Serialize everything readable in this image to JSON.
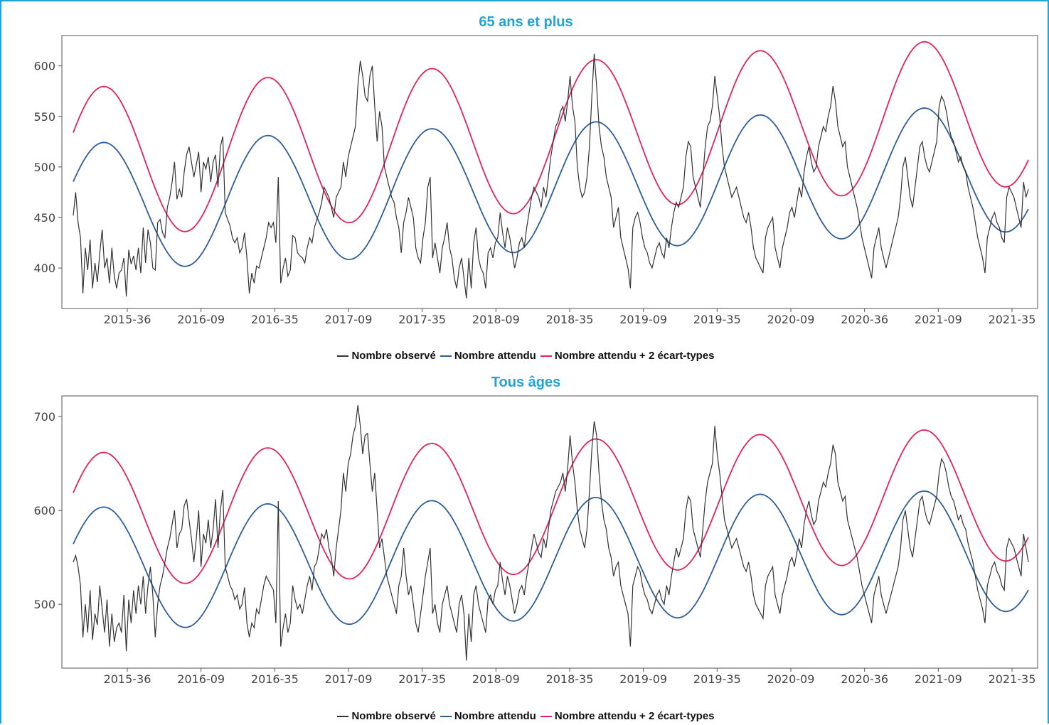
{
  "chart_data": [
    {
      "type": "line",
      "title": "65 ans et plus",
      "xlabel": "",
      "ylabel": "",
      "x_tick_labels": [
        "2015-36",
        "2016-09",
        "2016-35",
        "2017-09",
        "2017-35",
        "2018-09",
        "2018-35",
        "2019-09",
        "2019-35",
        "2020-09",
        "2020-36",
        "2021-09",
        "2021-35"
      ],
      "ylim": [
        360,
        630
      ],
      "y_ticks": [
        400,
        450,
        500,
        550,
        600
      ],
      "grid": false,
      "legend_position": "bottom",
      "series": [
        {
          "name": "Nombre observé",
          "color": "#333333",
          "values": [
            452,
            475,
            445,
            430,
            375,
            420,
            398,
            428,
            380,
            405,
            386,
            415,
            438,
            400,
            410,
            385,
            420,
            392,
            380,
            395,
            398,
            410,
            372,
            418,
            404,
            412,
            398,
            420,
            395,
            440,
            405,
            438,
            425,
            400,
            398,
            445,
            448,
            435,
            430,
            460,
            470,
            485,
            505,
            468,
            478,
            470,
            495,
            512,
            520,
            505,
            490,
            502,
            515,
            475,
            505,
            498,
            510,
            485,
            505,
            512,
            480,
            520,
            530,
            455,
            448,
            442,
            430,
            425,
            430,
            415,
            420,
            435,
            410,
            375,
            395,
            385,
            402,
            400,
            410,
            420,
            430,
            445,
            440,
            445,
            425,
            490,
            385,
            400,
            410,
            392,
            398,
            432,
            430,
            415,
            412,
            410,
            405,
            420,
            430,
            425,
            440,
            448,
            455,
            465,
            480,
            475,
            470,
            460,
            450,
            470,
            475,
            480,
            505,
            490,
            510,
            520,
            530,
            540,
            580,
            605,
            590,
            570,
            565,
            590,
            600,
            560,
            525,
            555,
            540,
            500,
            490,
            480,
            470,
            465,
            450,
            440,
            415,
            445,
            455,
            470,
            460,
            450,
            420,
            410,
            405,
            430,
            445,
            480,
            490,
            410,
            425,
            410,
            395,
            420,
            430,
            445,
            420,
            410,
            390,
            380,
            400,
            410,
            390,
            370,
            410,
            380,
            425,
            440,
            410,
            400,
            395,
            380,
            415,
            420,
            410,
            425,
            430,
            455,
            435,
            420,
            440,
            430,
            415,
            400,
            410,
            425,
            430,
            420,
            440,
            455,
            470,
            480,
            475,
            470,
            460,
            480,
            470,
            490,
            510,
            525,
            540,
            545,
            555,
            560,
            545,
            565,
            590,
            560,
            545,
            500,
            480,
            470,
            475,
            490,
            520,
            570,
            612,
            580,
            540,
            520,
            510,
            490,
            480,
            470,
            440,
            450,
            460,
            430,
            420,
            410,
            400,
            380,
            440,
            450,
            455,
            445,
            430,
            420,
            415,
            405,
            400,
            410,
            420,
            425,
            415,
            410,
            430,
            420,
            440,
            455,
            465,
            460,
            470,
            480,
            510,
            525,
            520,
            490,
            480,
            470,
            460,
            490,
            520,
            540,
            545,
            560,
            590,
            570,
            550,
            520,
            500,
            490,
            480,
            470,
            475,
            480,
            470,
            460,
            450,
            445,
            455,
            440,
            420,
            410,
            405,
            400,
            395,
            430,
            440,
            445,
            450,
            420,
            410,
            400,
            420,
            430,
            440,
            455,
            460,
            450,
            465,
            480,
            470,
            495,
            510,
            520,
            505,
            495,
            500,
            520,
            530,
            540,
            535,
            550,
            560,
            580,
            565,
            540,
            530,
            520,
            525,
            500,
            490,
            480,
            470,
            460,
            445,
            430,
            420,
            410,
            400,
            390,
            420,
            430,
            440,
            420,
            410,
            400,
            410,
            420,
            430,
            440,
            450,
            470,
            500,
            510,
            490,
            470,
            460,
            480,
            500,
            520,
            525,
            510,
            500,
            495,
            505,
            515,
            525,
            560,
            570,
            565,
            555,
            540,
            530,
            525,
            515,
            505,
            510,
            500,
            495,
            480,
            470,
            460,
            445,
            430,
            420,
            410,
            395,
            430,
            440,
            450,
            455,
            445,
            440,
            430,
            425,
            470,
            480,
            475,
            470,
            460,
            450,
            440,
            485,
            470,
            478
          ],
          "format": "weekly-index"
        },
        {
          "name": "Nombre attendu",
          "color": "#2e5e9a",
          "curve": {
            "base": 460,
            "amp": 63,
            "trend": 0.1
          }
        },
        {
          "name": "Nombre attendu  + 2 écart-types",
          "color": "#e0245e",
          "curve": {
            "base": 504,
            "amp": 74,
            "trend": 0.13
          }
        }
      ]
    },
    {
      "type": "line",
      "title": "Tous âges",
      "xlabel": "",
      "ylabel": "",
      "x_tick_labels": [
        "2015-36",
        "2016-09",
        "2016-35",
        "2017-09",
        "2017-35",
        "2018-09",
        "2018-35",
        "2019-09",
        "2019-35",
        "2020-09",
        "2020-36",
        "2021-09",
        "2021-35"
      ],
      "ylim": [
        432,
        722
      ],
      "y_ticks": [
        500,
        600,
        700
      ],
      "grid": false,
      "legend_position": "bottom",
      "series": [
        {
          "name": "Nombre observé",
          "color": "#333333",
          "values": [
            545,
            552,
            540,
            520,
            465,
            500,
            470,
            515,
            462,
            490,
            478,
            520,
            495,
            470,
            505,
            455,
            490,
            460,
            475,
            480,
            470,
            510,
            450,
            505,
            480,
            515,
            490,
            520,
            500,
            530,
            490,
            520,
            540,
            510,
            465,
            500,
            520,
            530,
            545,
            560,
            570,
            585,
            600,
            560,
            575,
            580,
            605,
            612,
            590,
            570,
            545,
            570,
            600,
            540,
            575,
            565,
            590,
            560,
            580,
            612,
            560,
            600,
            622,
            540,
            530,
            520,
            515,
            505,
            510,
            495,
            500,
            518,
            480,
            465,
            480,
            475,
            495,
            490,
            505,
            520,
            530,
            525,
            520,
            515,
            480,
            610,
            455,
            475,
            490,
            470,
            480,
            520,
            505,
            495,
            500,
            490,
            505,
            520,
            530,
            515,
            540,
            545,
            560,
            575,
            570,
            580,
            560,
            550,
            530,
            560,
            580,
            600,
            640,
            620,
            650,
            660,
            680,
            690,
            712,
            690,
            660,
            680,
            682,
            650,
            620,
            640,
            600,
            560,
            570,
            550,
            530,
            520,
            510,
            500,
            490,
            520,
            530,
            560,
            530,
            510,
            520,
            500,
            480,
            470,
            490,
            510,
            530,
            545,
            560,
            490,
            500,
            480,
            470,
            500,
            510,
            520,
            500,
            490,
            480,
            470,
            500,
            510,
            490,
            440,
            490,
            460,
            510,
            520,
            500,
            490,
            480,
            470,
            505,
            510,
            500,
            515,
            520,
            545,
            525,
            510,
            530,
            520,
            505,
            490,
            500,
            515,
            520,
            510,
            530,
            545,
            560,
            575,
            565,
            555,
            550,
            570,
            560,
            580,
            600,
            610,
            620,
            625,
            630,
            640,
            620,
            645,
            680,
            650,
            630,
            600,
            580,
            570,
            560,
            580,
            620,
            665,
            695,
            680,
            640,
            610,
            590,
            580,
            560,
            550,
            530,
            540,
            545,
            520,
            510,
            500,
            490,
            455,
            520,
            530,
            540,
            535,
            520,
            510,
            505,
            495,
            490,
            500,
            510,
            515,
            505,
            500,
            520,
            510,
            530,
            545,
            560,
            550,
            560,
            570,
            600,
            615,
            610,
            580,
            570,
            560,
            550,
            580,
            610,
            630,
            640,
            650,
            690,
            660,
            640,
            615,
            590,
            580,
            570,
            560,
            565,
            570,
            560,
            550,
            540,
            535,
            545,
            530,
            510,
            500,
            495,
            490,
            485,
            520,
            530,
            535,
            540,
            510,
            500,
            490,
            510,
            520,
            530,
            545,
            550,
            540,
            555,
            570,
            560,
            585,
            600,
            610,
            595,
            585,
            590,
            610,
            620,
            630,
            625,
            640,
            650,
            670,
            660,
            630,
            620,
            610,
            615,
            590,
            580,
            570,
            560,
            550,
            535,
            520,
            510,
            500,
            490,
            480,
            510,
            520,
            530,
            510,
            500,
            490,
            500,
            510,
            520,
            530,
            540,
            560,
            590,
            600,
            580,
            560,
            550,
            570,
            590,
            610,
            615,
            600,
            590,
            585,
            595,
            605,
            615,
            640,
            655,
            650,
            640,
            625,
            615,
            610,
            600,
            590,
            595,
            585,
            580,
            565,
            555,
            545,
            530,
            515,
            505,
            495,
            480,
            520,
            530,
            540,
            545,
            535,
            530,
            520,
            515,
            560,
            570,
            565,
            560,
            550,
            540,
            530,
            575,
            560,
            545
          ],
          "format": "weekly-index"
        },
        {
          "name": "Nombre attendu",
          "color": "#2e5e9a",
          "curve": {
            "base": 538,
            "amp": 65,
            "trend": 0.05
          }
        },
        {
          "name": "Nombre attendu  + 2 écart-types",
          "color": "#e0245e",
          "curve": {
            "base": 590,
            "amp": 71,
            "trend": 0.07
          }
        }
      ]
    }
  ]
}
